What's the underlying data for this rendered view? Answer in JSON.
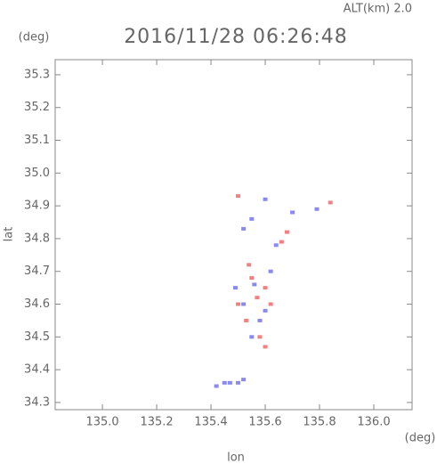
{
  "chart_data": {
    "type": "scatter",
    "title": "2016/11/28 06:26:48",
    "subtitle": "ALT(km) 2.0",
    "x_label": "lon",
    "y_label": "lat",
    "x_unit": "(deg)",
    "y_unit": "(deg)",
    "xlim": [
      134.826,
      136.141
    ],
    "ylim": [
      34.278,
      35.346
    ],
    "xticks": [
      {
        "value": 135.0,
        "label": "135.0"
      },
      135.2,
      135.4,
      135.6,
      135.8,
      {
        "value": 136.0,
        "label": "136.0"
      }
    ],
    "yticks": [
      34.3,
      34.4,
      34.5,
      34.6,
      34.7,
      34.8,
      34.9,
      {
        "value": 35.0,
        "label": "35.0"
      },
      35.1,
      35.2,
      35.3
    ],
    "series": [
      {
        "color": "#6b6bf0",
        "x": [
          135.42,
          135.45,
          135.47,
          135.5,
          135.52,
          135.55,
          135.52,
          135.6,
          135.7,
          135.79,
          135.52,
          135.58,
          135.62,
          135.64,
          135.49,
          135.55,
          135.6,
          135.56
        ],
        "y": [
          34.35,
          34.36,
          34.36,
          34.36,
          34.37,
          34.86,
          34.83,
          34.92,
          34.88,
          34.89,
          34.6,
          34.55,
          34.7,
          34.78,
          34.65,
          34.5,
          34.58,
          34.66
        ]
      },
      {
        "color": "#f06060",
        "x": [
          135.5,
          135.84,
          135.68,
          135.54,
          135.6,
          135.5,
          135.57,
          135.58,
          135.6,
          135.62,
          135.53,
          135.55,
          135.66
        ],
        "y": [
          34.93,
          34.91,
          34.82,
          34.72,
          34.65,
          34.6,
          34.62,
          34.5,
          34.47,
          34.6,
          34.55,
          34.68,
          34.79
        ]
      }
    ]
  }
}
